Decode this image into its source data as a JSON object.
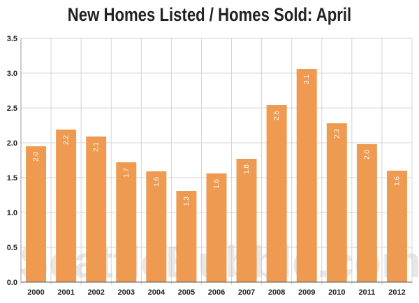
{
  "chart_data": {
    "type": "bar",
    "title": "New Homes Listed / Homes Sold: April",
    "categories": [
      "2000",
      "2001",
      "2002",
      "2003",
      "2004",
      "2005",
      "2006",
      "2007",
      "2008",
      "2009",
      "2010",
      "2011",
      "2012"
    ],
    "values": [
      1.95,
      2.19,
      2.09,
      1.72,
      1.59,
      1.31,
      1.56,
      1.77,
      2.54,
      3.06,
      2.28,
      1.98,
      1.6
    ],
    "data_labels": [
      "2.0",
      "2.2",
      "2.1",
      "1.7",
      "1.6",
      "1.3",
      "1.6",
      "1.8",
      "2.5",
      "3.1",
      "2.3",
      "2.0",
      "1.6"
    ],
    "y_ticks": [
      "0.0",
      "0.5",
      "1.0",
      "1.5",
      "2.0",
      "2.5",
      "3.0",
      "3.5"
    ],
    "ylim": [
      0,
      3.5
    ],
    "xlabel": "",
    "ylabel": "",
    "grid": true,
    "bar_color": "#EE9A50",
    "watermark": "SeattleBubble.com"
  }
}
